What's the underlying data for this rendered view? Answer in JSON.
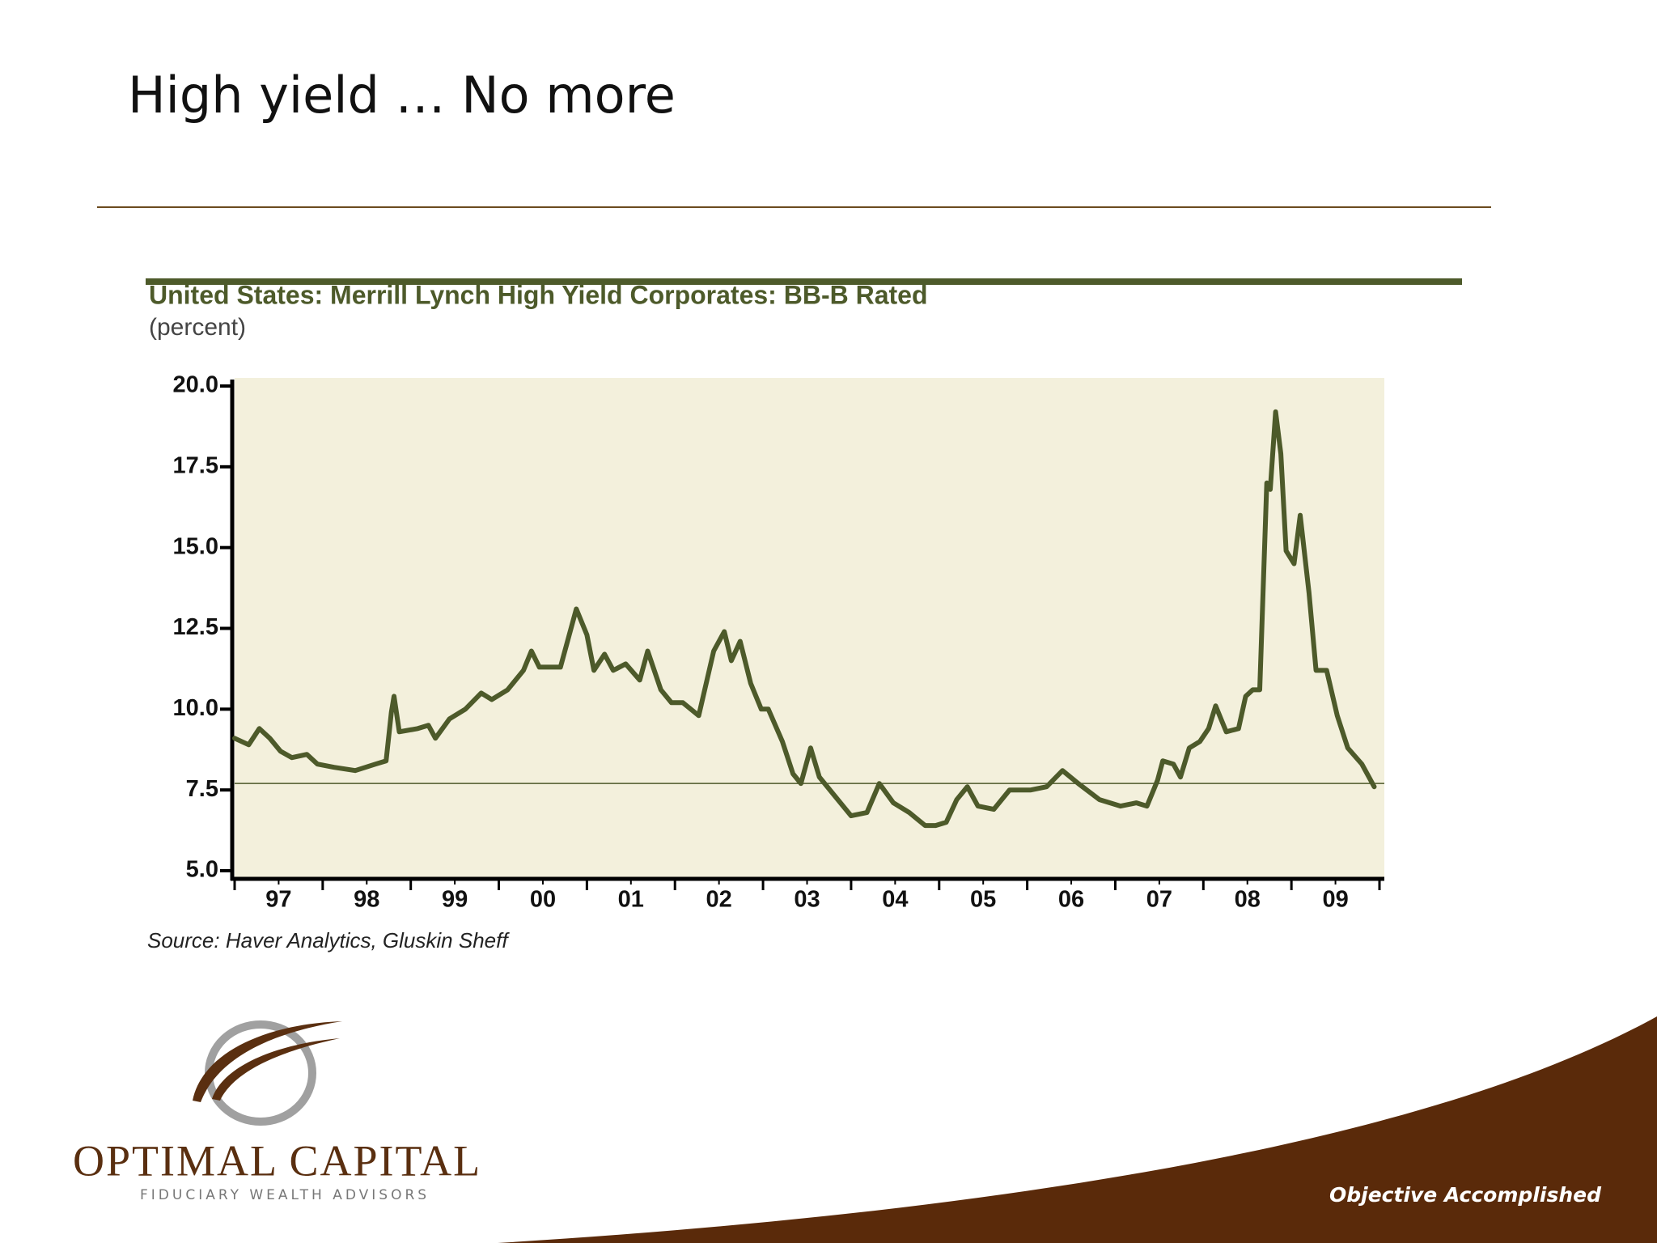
{
  "slide_title": "High yield … No more",
  "logo": {
    "name": "Optimal Capital",
    "tagline": "FIDUCIARY WEALTH ADVISORS"
  },
  "slogan": "Objective Accomplished",
  "chart_data": {
    "type": "line",
    "title": "United States: Merrill Lynch High Yield Corporates: BB-B Rated",
    "subtitle": "(percent)",
    "source": "Source: Haver Analytics, Gluskin Sheff",
    "color": "#4d5a2a",
    "x": [
      1997.0,
      1997.16,
      1997.28,
      1997.4,
      1997.52,
      1997.65,
      1997.82,
      1997.94,
      1998.13,
      1998.37,
      1998.6,
      1998.72,
      1998.78,
      1998.81,
      1998.87,
      1999.08,
      1999.2,
      1999.28,
      1999.44,
      1999.62,
      1999.8,
      1999.92,
      2000.1,
      2000.28,
      2000.37,
      2000.46,
      2000.7,
      2000.88,
      2001.0,
      2001.08,
      2001.2,
      2001.3,
      2001.44,
      2001.6,
      2001.69,
      2001.84,
      2001.96,
      2002.09,
      2002.27,
      2002.44,
      2002.56,
      2002.64,
      2002.74,
      2002.86,
      2002.98,
      2003.06,
      2003.22,
      2003.34,
      2003.43,
      2003.54,
      2003.64,
      2003.82,
      2004.0,
      2004.18,
      2004.32,
      2004.48,
      2004.66,
      2004.84,
      2004.96,
      2005.08,
      2005.2,
      2005.32,
      2005.44,
      2005.62,
      2005.8,
      2006.04,
      2006.22,
      2006.4,
      2006.58,
      2006.82,
      2007.06,
      2007.24,
      2007.36,
      2007.48,
      2007.54,
      2007.66,
      2007.74,
      2007.84,
      2007.96,
      2008.06,
      2008.14,
      2008.26,
      2008.4,
      2008.48,
      2008.56,
      2008.64,
      2008.72,
      2008.76,
      2008.82,
      2008.88,
      2008.94,
      2009.03,
      2009.1,
      2009.2,
      2009.28,
      2009.4,
      2009.52,
      2009.64,
      2009.8,
      2009.94
    ],
    "values": [
      9.1,
      8.9,
      9.4,
      9.1,
      8.7,
      8.5,
      8.6,
      8.3,
      8.2,
      8.1,
      8.3,
      8.4,
      9.9,
      10.4,
      9.3,
      9.4,
      9.5,
      9.1,
      9.7,
      10.0,
      10.5,
      10.3,
      10.6,
      11.2,
      11.8,
      11.3,
      11.3,
      13.1,
      12.3,
      11.2,
      11.7,
      11.2,
      11.4,
      10.9,
      11.8,
      10.6,
      10.2,
      10.2,
      9.8,
      11.8,
      12.4,
      11.5,
      12.1,
      10.8,
      10.0,
      10.0,
      9.0,
      8.0,
      7.7,
      8.8,
      7.9,
      7.3,
      6.7,
      6.8,
      7.7,
      7.1,
      6.8,
      6.4,
      6.4,
      6.5,
      7.2,
      7.6,
      7.0,
      6.9,
      7.5,
      7.5,
      7.6,
      8.1,
      7.7,
      7.2,
      7.0,
      7.1,
      7.0,
      7.8,
      8.4,
      8.3,
      7.9,
      8.8,
      9.0,
      9.4,
      10.1,
      9.3,
      9.4,
      10.4,
      10.6,
      10.6,
      17.0,
      16.8,
      19.2,
      17.9,
      14.9,
      14.5,
      16.0,
      13.6,
      11.2,
      11.2,
      9.8,
      8.8,
      8.3,
      7.6
    ],
    "reference_line": 7.7,
    "xlim": [
      1997,
      2010
    ],
    "xticks": [
      {
        "value": 1997.5,
        "label": "97"
      },
      {
        "value": 1998.5,
        "label": "98"
      },
      {
        "value": 1999.5,
        "label": "99"
      },
      {
        "value": 2000.5,
        "label": "00"
      },
      {
        "value": 2001.5,
        "label": "01"
      },
      {
        "value": 2002.5,
        "label": "02"
      },
      {
        "value": 2003.5,
        "label": "03"
      },
      {
        "value": 2004.5,
        "label": "04"
      },
      {
        "value": 2005.5,
        "label": "05"
      },
      {
        "value": 2006.5,
        "label": "06"
      },
      {
        "value": 2007.5,
        "label": "07"
      },
      {
        "value": 2008.5,
        "label": "08"
      },
      {
        "value": 2009.5,
        "label": "09"
      }
    ],
    "ylim": [
      5,
      20
    ],
    "yticks": [
      {
        "value": 20,
        "label": "20.0"
      },
      17.5,
      {
        "value": 15,
        "label": "15.0"
      },
      12.5,
      {
        "value": 10,
        "label": "10.0"
      },
      7.5,
      {
        "value": 5,
        "label": "5.0"
      }
    ]
  }
}
